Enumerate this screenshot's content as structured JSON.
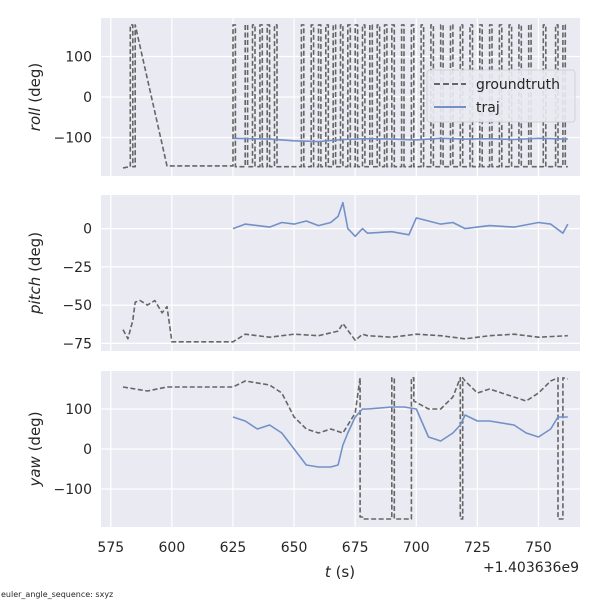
{
  "figure": {
    "footnote": "euler_angle_sequence: sxyz",
    "x_offset_text": "+1.403636e9",
    "xlabel": {
      "var": "t",
      "unit": " (s)"
    },
    "x_ticks": [
      575,
      600,
      625,
      650,
      675,
      700,
      725,
      750
    ]
  },
  "legend": {
    "placement": "right of top panel",
    "entries": [
      {
        "label": "groundtruth",
        "style": "dashed",
        "color": "#666666"
      },
      {
        "label": "traj",
        "style": "solid",
        "color": "#7391c7"
      }
    ]
  },
  "colors": {
    "groundtruth": "#666666",
    "traj": "#7391c7",
    "panel_bg": "#eaeaf2",
    "grid": "#ffffff"
  },
  "chart_data": [
    {
      "type": "line",
      "ylabel": {
        "var": "roll",
        "unit": " (deg)"
      },
      "xlim": [
        571,
        767
      ],
      "ylim": [
        -195,
        195
      ],
      "y_ticks": [
        100,
        0,
        -100
      ],
      "grid": true,
      "series": [
        {
          "name": "groundtruth",
          "style": "dashed",
          "x": [
            580,
            583,
            583,
            584,
            584,
            585,
            585,
            598,
            625,
            625,
            626,
            626,
            630,
            630,
            631,
            631,
            633,
            633,
            634,
            634,
            636,
            636,
            637,
            637,
            639,
            639,
            640,
            640,
            642,
            642,
            643,
            643,
            653,
            653,
            654,
            654,
            657,
            657,
            658,
            658,
            660,
            660,
            661,
            661,
            663,
            663,
            664,
            664,
            666,
            666,
            667,
            667,
            669,
            669,
            670,
            670,
            672,
            672,
            673,
            673,
            675,
            675,
            676,
            676,
            678,
            678,
            679,
            679,
            681,
            681,
            682,
            682,
            684,
            684,
            685,
            685,
            687,
            687,
            688,
            688,
            690,
            690,
            691,
            691,
            694,
            694,
            695,
            695,
            698,
            698,
            699,
            699,
            702,
            702,
            703,
            703,
            706,
            706,
            707,
            707,
            710,
            710,
            711,
            711,
            714,
            714,
            715,
            715,
            718,
            718,
            719,
            719,
            722,
            722,
            723,
            723,
            726,
            726,
            727,
            727,
            730,
            730,
            731,
            731,
            734,
            734,
            735,
            735,
            738,
            738,
            739,
            739,
            742,
            742,
            743,
            743,
            746,
            746,
            747,
            747,
            752,
            752,
            753,
            753,
            757,
            757,
            758,
            758,
            760,
            760,
            761,
            761,
            762
          ],
          "y": [
            -175,
            -172,
            178,
            178,
            -172,
            -172,
            178,
            -170,
            -170,
            178,
            178,
            -172,
            -172,
            178,
            178,
            -172,
            -172,
            178,
            178,
            -172,
            -172,
            178,
            178,
            -172,
            -172,
            178,
            178,
            -172,
            -172,
            178,
            178,
            -172,
            -172,
            178,
            178,
            -172,
            -172,
            178,
            178,
            -172,
            -172,
            178,
            178,
            -172,
            -172,
            178,
            178,
            -172,
            -172,
            178,
            178,
            -172,
            -172,
            178,
            178,
            -172,
            -172,
            178,
            178,
            -172,
            -172,
            178,
            178,
            -172,
            -172,
            178,
            178,
            -172,
            -172,
            178,
            178,
            -172,
            -172,
            178,
            178,
            -172,
            -172,
            178,
            178,
            -172,
            -172,
            178,
            178,
            -172,
            -172,
            178,
            178,
            -172,
            -172,
            178,
            178,
            -172,
            -172,
            178,
            178,
            -172,
            -172,
            178,
            178,
            -172,
            -172,
            178,
            178,
            -172,
            -172,
            178,
            178,
            -172,
            -172,
            178,
            178,
            -172,
            -172,
            178,
            178,
            -172,
            -172,
            178,
            178,
            -172,
            -172,
            178,
            178,
            -172,
            -172,
            178,
            178,
            -172,
            -172,
            178,
            178,
            -172,
            -172,
            178,
            178,
            -172,
            -172,
            178,
            178,
            -172,
            -172,
            178,
            178,
            -172,
            -172,
            178,
            178,
            -172,
            -172,
            178,
            178,
            -172,
            -172
          ]
        },
        {
          "name": "traj",
          "style": "solid",
          "x": [
            625,
            640,
            650,
            660,
            670,
            680,
            690,
            700,
            710,
            720,
            730,
            740,
            750,
            762
          ],
          "y": [
            -102,
            -104,
            -108,
            -110,
            -105,
            -103,
            -104,
            -106,
            -102,
            -104,
            -103,
            -105,
            -102,
            -104
          ]
        }
      ]
    },
    {
      "type": "line",
      "ylabel": {
        "var": "pitch",
        "unit": " (deg)"
      },
      "xlim": [
        571,
        767
      ],
      "ylim": [
        -80,
        22
      ],
      "y_ticks": [
        0,
        -25,
        -50,
        -75
      ],
      "grid": true,
      "series": [
        {
          "name": "groundtruth",
          "style": "dashed",
          "x": [
            580,
            582,
            584,
            585,
            587,
            590,
            593,
            596,
            598,
            600,
            625,
            630,
            640,
            650,
            660,
            668,
            670,
            675,
            678,
            680,
            690,
            700,
            710,
            720,
            730,
            740,
            750,
            762
          ],
          "y": [
            -66,
            -72,
            -60,
            -48,
            -47,
            -50,
            -47,
            -55,
            -51,
            -74,
            -74,
            -69,
            -71,
            -69,
            -70,
            -67,
            -62,
            -73,
            -69,
            -70,
            -71,
            -69,
            -70,
            -72,
            -70,
            -69,
            -71,
            -70
          ]
        },
        {
          "name": "traj",
          "style": "solid",
          "x": [
            625,
            630,
            635,
            640,
            645,
            650,
            655,
            660,
            665,
            668,
            670,
            672,
            675,
            678,
            680,
            690,
            697,
            700,
            710,
            715,
            720,
            730,
            740,
            750,
            755,
            760,
            762
          ],
          "y": [
            0,
            3,
            2,
            1,
            4,
            3,
            5,
            2,
            4,
            8,
            17,
            0,
            -5,
            0,
            -3,
            -2,
            -4,
            7,
            3,
            4,
            0,
            2,
            1,
            4,
            3,
            -3,
            3
          ]
        }
      ]
    },
    {
      "type": "line",
      "ylabel": {
        "var": "yaw",
        "unit": " (deg)"
      },
      "xlim": [
        571,
        767
      ],
      "ylim": [
        -195,
        195
      ],
      "y_ticks": [
        100,
        0,
        -100
      ],
      "grid": true,
      "series": [
        {
          "name": "groundtruth",
          "style": "dashed",
          "x": [
            580,
            585,
            590,
            598,
            625,
            630,
            640,
            645,
            650,
            655,
            660,
            665,
            670,
            675,
            677,
            677,
            678,
            678,
            690,
            690,
            691,
            691,
            698,
            698,
            699,
            699,
            705,
            710,
            715,
            718,
            718,
            719,
            719,
            720,
            725,
            730,
            740,
            745,
            750,
            755,
            758,
            758,
            760,
            760,
            762
          ],
          "y": [
            155,
            150,
            145,
            155,
            155,
            170,
            160,
            140,
            80,
            50,
            40,
            50,
            40,
            90,
            178,
            -170,
            -170,
            -175,
            -175,
            178,
            178,
            -175,
            -175,
            178,
            178,
            120,
            100,
            100,
            130,
            178,
            -175,
            -175,
            178,
            170,
            140,
            150,
            130,
            120,
            140,
            170,
            178,
            -175,
            -175,
            178,
            175
          ]
        },
        {
          "name": "traj",
          "style": "solid",
          "x": [
            625,
            630,
            635,
            640,
            645,
            650,
            655,
            660,
            665,
            668,
            670,
            672,
            675,
            678,
            680,
            690,
            695,
            700,
            705,
            710,
            715,
            718,
            720,
            725,
            730,
            740,
            745,
            750,
            755,
            758,
            762
          ],
          "y": [
            80,
            70,
            50,
            60,
            40,
            0,
            -40,
            -45,
            -45,
            -40,
            10,
            40,
            80,
            100,
            100,
            105,
            105,
            100,
            30,
            20,
            40,
            60,
            85,
            70,
            70,
            60,
            40,
            30,
            50,
            80,
            80
          ]
        }
      ]
    }
  ]
}
